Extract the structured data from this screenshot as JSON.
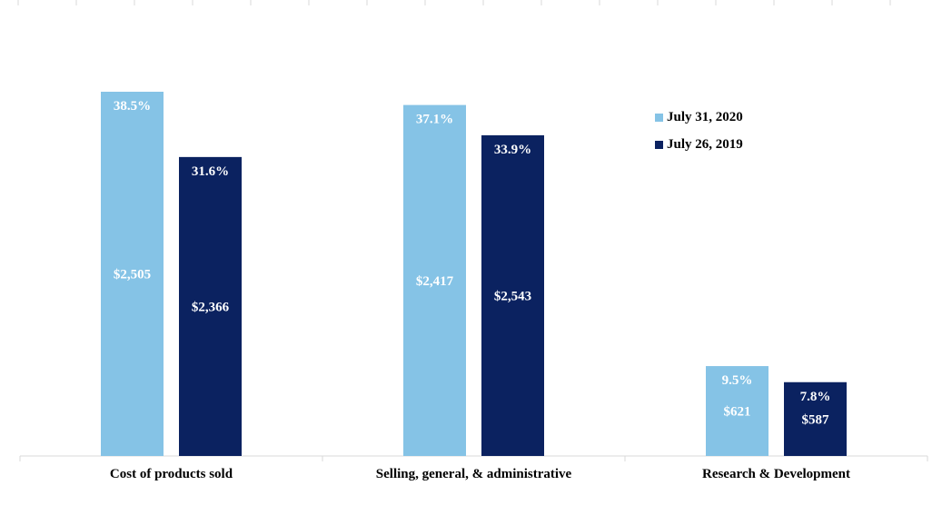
{
  "chart_data": {
    "type": "bar",
    "categories": [
      "Cost of products sold",
      "Selling, general, & administrative",
      "Research & Development"
    ],
    "series": [
      {
        "name": "July 31, 2020",
        "color": "#85c3e6",
        "values": [
          2505,
          2417,
          621
        ],
        "value_labels": [
          "$2,505",
          "$2,417",
          "$621"
        ],
        "percent_values": [
          38.5,
          37.1,
          9.5
        ],
        "percent_labels": [
          "38.5%",
          "37.1%",
          "9.5%"
        ]
      },
      {
        "name": "July 26, 2019",
        "color": "#0b2260",
        "values": [
          2366,
          2543,
          587
        ],
        "value_labels": [
          "$2,366",
          "$2,543",
          "$587"
        ],
        "percent_values": [
          31.6,
          33.9,
          7.8
        ],
        "percent_labels": [
          "31.6%",
          "33.9%",
          "7.8%"
        ]
      }
    ],
    "legend_position": "top-right",
    "grid": false
  }
}
